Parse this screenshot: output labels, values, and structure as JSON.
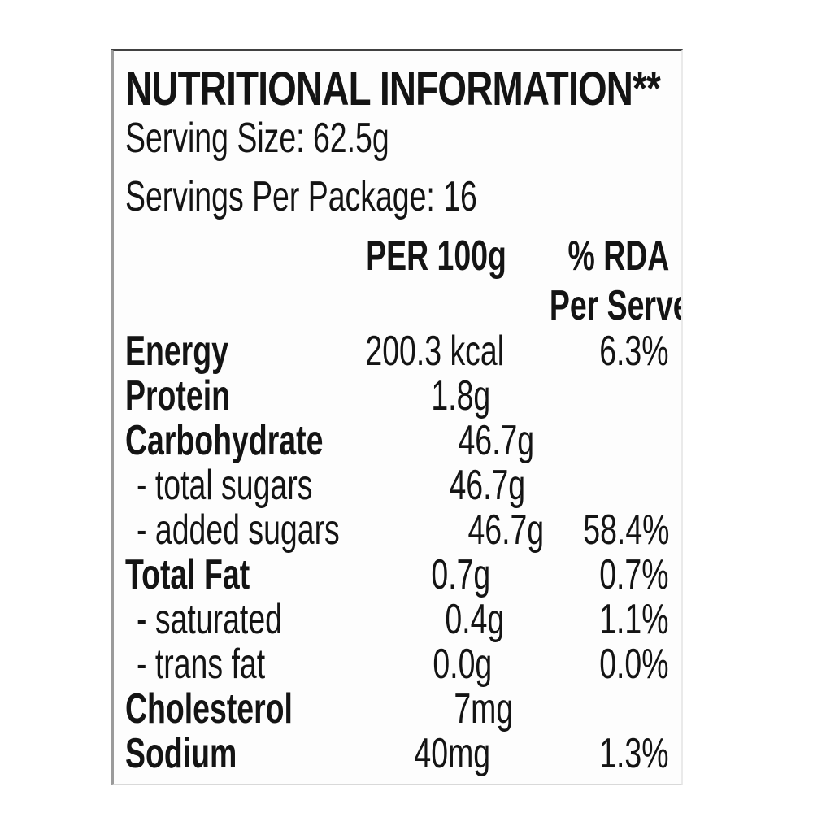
{
  "label": {
    "title": "NUTRITIONAL INFORMATION**",
    "serving_size": "Serving Size: 62.5g",
    "servings_per_package": "Servings Per Package: 16",
    "columns": {
      "per_100g": "PER 100g",
      "rda_line1": "% RDA",
      "rda_line2": "Per Serve*"
    },
    "rows": [
      {
        "name": "Energy",
        "bold": true,
        "value": "200.3 kcal",
        "rda": "6.3%"
      },
      {
        "name": "Protein",
        "bold": true,
        "value": "1.8g",
        "rda": ""
      },
      {
        "name": "Carbohydrate",
        "bold": true,
        "value": "46.7g",
        "rda": ""
      },
      {
        "name": "- total sugars",
        "bold": false,
        "value": "46.7g",
        "rda": ""
      },
      {
        "name": "- added sugars",
        "bold": false,
        "value": "46.7g",
        "rda": "58.4%"
      },
      {
        "name": "Total Fat",
        "bold": true,
        "value": "0.7g",
        "rda": "0.7%"
      },
      {
        "name": "- saturated",
        "bold": false,
        "value": "0.4g",
        "rda": "1.1%"
      },
      {
        "name": "- trans fat",
        "bold": false,
        "value": "0.0g",
        "rda": "0.0%"
      },
      {
        "name": "Cholesterol",
        "bold": true,
        "value": "7mg",
        "rda": ""
      },
      {
        "name": "Sodium",
        "bold": true,
        "value": "40mg",
        "rda": "1.3%"
      }
    ],
    "colors": {
      "text": "#141414",
      "panel_background": "#fdfdfd",
      "border_top": "#414141",
      "border_left": "#9b9b9b"
    }
  }
}
